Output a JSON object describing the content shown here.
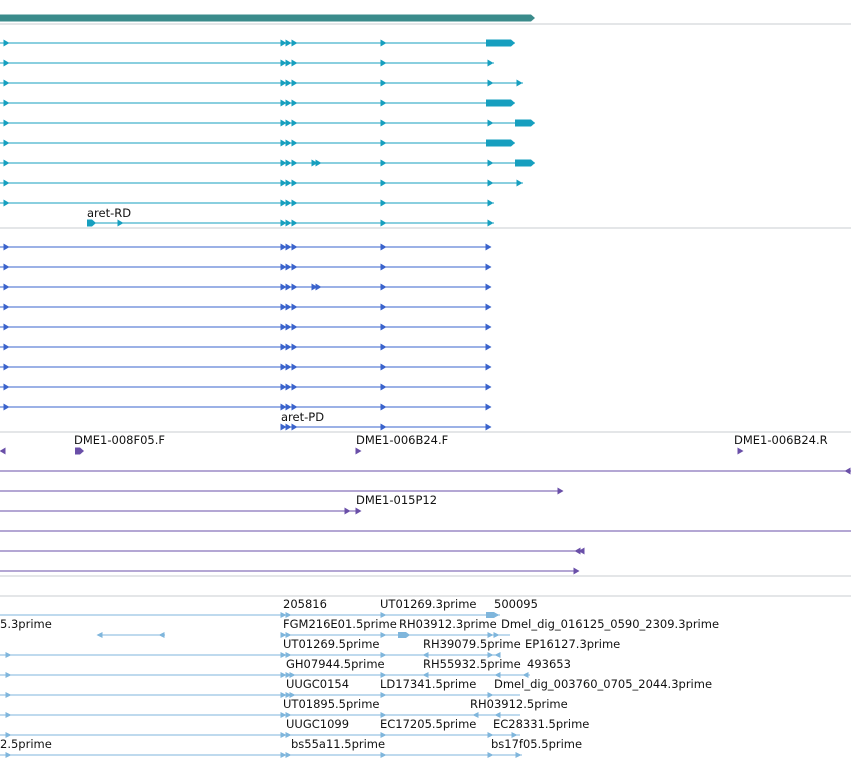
{
  "colors": {
    "gene_track": "#3a8b8b",
    "transcript": "#169fbf",
    "protein": "#3a63cc",
    "bac_clone": "#6a4fa8",
    "est": "#7fb6dc",
    "separator": "#c9ccd0",
    "label": "#111111"
  },
  "tracks": {
    "transcripts": {
      "labels": [
        {
          "text": "aret-RD"
        }
      ]
    },
    "proteins": {
      "labels": [
        {
          "text": "aret-PD"
        }
      ]
    },
    "bac_clones": {
      "labels": [
        {
          "text": "DME1-008F05.F"
        },
        {
          "text": "DME1-006B24.F"
        },
        {
          "text": "DME1-006B24.R"
        },
        {
          "text": "DME1-015P12"
        }
      ]
    },
    "ests": {
      "labels": [
        {
          "text": "205816"
        },
        {
          "text": "UT01269.3prime"
        },
        {
          "text": "500095"
        },
        {
          "text": "5.3prime"
        },
        {
          "text": "FGM216E01.5prime"
        },
        {
          "text": "RH03912.3prime"
        },
        {
          "text": "Dmel_dig_016125_0590_2309.3prime"
        },
        {
          "text": "UT01269.5prime"
        },
        {
          "text": "RH39079.5prime"
        },
        {
          "text": "EP16127.3prime"
        },
        {
          "text": "GH07944.5prime"
        },
        {
          "text": "RH55932.5prime"
        },
        {
          "text": "493653"
        },
        {
          "text": "UUGC0154"
        },
        {
          "text": "LD17341.5prime"
        },
        {
          "text": "Dmel_dig_003760_0705_2044.3prime"
        },
        {
          "text": "UT01895.5prime"
        },
        {
          "text": "RH03912.5prime"
        },
        {
          "text": "UUGC1099"
        },
        {
          "text": "EC17205.5prime"
        },
        {
          "text": "EC28331.5prime"
        },
        {
          "text": "2.5prime"
        },
        {
          "text": "bs55a11.5prime"
        },
        {
          "text": "bs17f05.5prime"
        }
      ]
    }
  }
}
